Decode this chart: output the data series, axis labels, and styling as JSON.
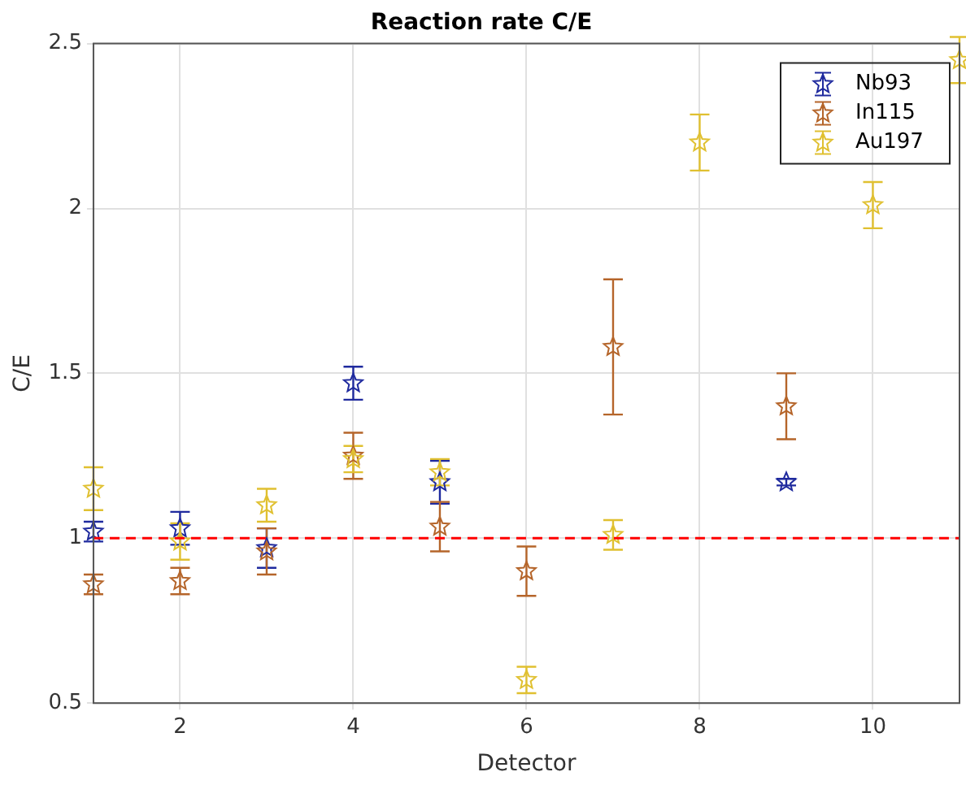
{
  "chart_data": {
    "type": "scatter",
    "title": "Reaction rate C/E",
    "xlabel": "Detector",
    "ylabel": "C/E",
    "x": [
      1,
      2,
      3,
      4,
      5,
      6,
      7,
      8,
      9,
      10,
      11
    ],
    "series": [
      {
        "name": "Nb93",
        "color": "#1f2a9e",
        "values": [
          1.02,
          1.03,
          0.97,
          1.47,
          1.17,
          null,
          null,
          null,
          1.17,
          null,
          null
        ],
        "errors": [
          0.03,
          0.05,
          0.06,
          0.05,
          0.065,
          null,
          null,
          null,
          0.01,
          null,
          null
        ]
      },
      {
        "name": "In115",
        "color": "#b5652a",
        "values": [
          0.86,
          0.87,
          0.96,
          1.25,
          1.035,
          0.9,
          1.58,
          null,
          1.4,
          null,
          null
        ],
        "errors": [
          0.03,
          0.04,
          0.07,
          0.07,
          0.075,
          0.075,
          0.205,
          null,
          0.1,
          null,
          null
        ]
      },
      {
        "name": "Au197",
        "color": "#e0c030",
        "values": [
          1.15,
          0.99,
          1.1,
          1.24,
          1.2,
          0.57,
          1.01,
          2.2,
          null,
          2.01,
          2.45
        ],
        "errors": [
          0.065,
          0.055,
          0.05,
          0.04,
          0.04,
          0.04,
          0.045,
          0.085,
          null,
          0.07,
          0.07
        ]
      }
    ],
    "xlim": [
      1,
      11
    ],
    "xticks": [
      2,
      4,
      6,
      8,
      10
    ],
    "ylim": [
      0.5,
      2.5
    ],
    "yticks": [
      0.5,
      1,
      1.5,
      2,
      2.5
    ],
    "ref_lines": [
      {
        "axis": "y",
        "value": 1,
        "color": "#ff0000",
        "line_style": "dashed"
      }
    ],
    "grid": true,
    "legend": "top right",
    "marker": "star"
  }
}
